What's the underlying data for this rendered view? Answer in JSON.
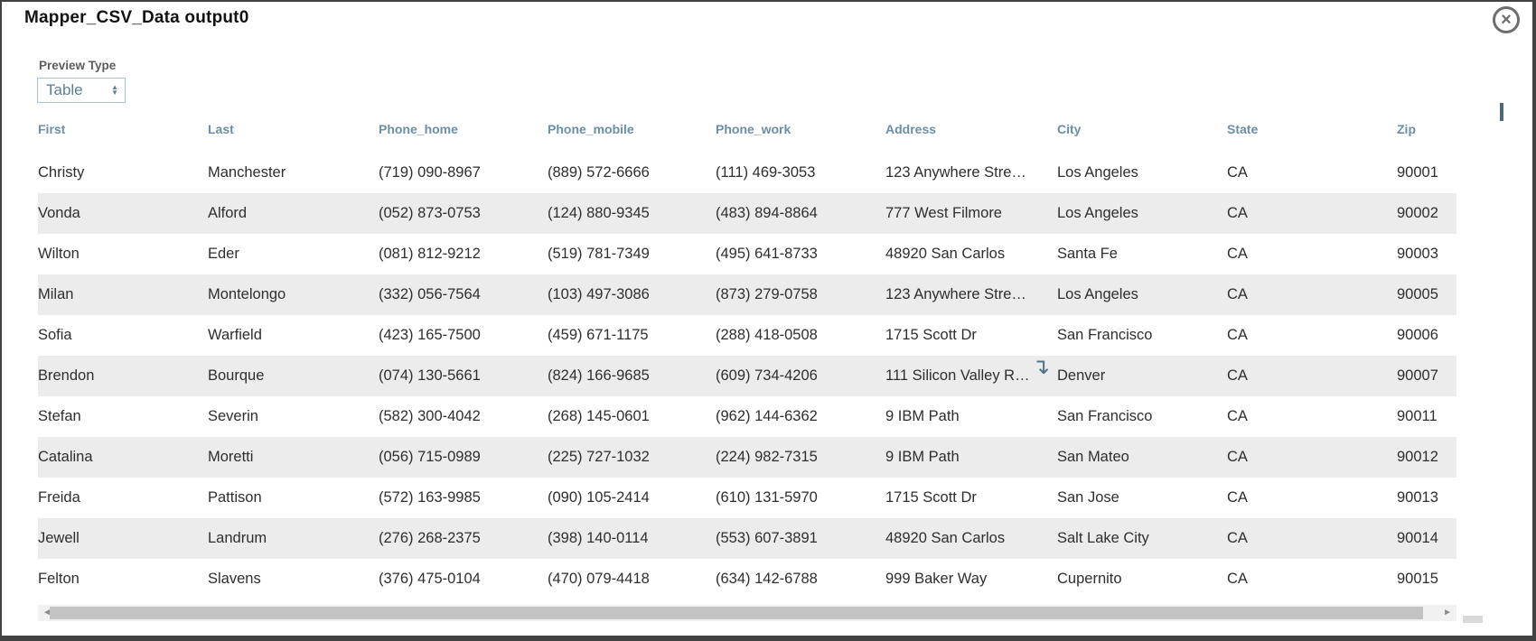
{
  "window": {
    "title": "Mapper_CSV_Data output0"
  },
  "icons": {
    "close": "×",
    "spinner_up": "▲",
    "spinner_down": "▼",
    "scroll_down": "↴",
    "scrollbar_left": "◄",
    "scrollbar_right": "►"
  },
  "colors": {
    "header_text": "#6a8fa5",
    "accent_teal": "#5f7e92",
    "stripe": "#ececec",
    "scrollbar_thumb": "#c3c3c3"
  },
  "preview": {
    "label": "Preview Type",
    "selected": "Table"
  },
  "table": {
    "columns": [
      "First",
      "Last",
      "Phone_home",
      "Phone_mobile",
      "Phone_work",
      "Address",
      "City",
      "State",
      "Zip"
    ],
    "rows": [
      [
        "Christy",
        "Manchester",
        "(719) 090-8967",
        "(889) 572-6666",
        "(111) 469-3053",
        "123 Anywhere Stre…",
        "Los Angeles",
        "CA",
        "90001"
      ],
      [
        "Vonda",
        "Alford",
        "(052) 873-0753",
        "(124) 880-9345",
        "(483) 894-8864",
        "777 West Filmore",
        "Los Angeles",
        "CA",
        "90002"
      ],
      [
        "Wilton",
        "Eder",
        "(081) 812-9212",
        "(519) 781-7349",
        "(495) 641-8733",
        "48920 San Carlos",
        "Santa Fe",
        "CA",
        "90003"
      ],
      [
        "Milan",
        "Montelongo",
        "(332) 056-7564",
        "(103) 497-3086",
        "(873) 279-0758",
        "123 Anywhere Stre…",
        "Los Angeles",
        "CA",
        "90005"
      ],
      [
        "Sofia",
        "Warfield",
        "(423) 165-7500",
        "(459) 671-1175",
        "(288) 418-0508",
        "1715 Scott Dr",
        "San Francisco",
        "CA",
        "90006"
      ],
      [
        "Brendon",
        "Bourque",
        "(074) 130-5661",
        "(824) 166-9685",
        "(609) 734-4206",
        "111 Silicon Valley R…",
        "Denver",
        "CA",
        "90007"
      ],
      [
        "Stefan",
        "Severin",
        "(582) 300-4042",
        "(268) 145-0601",
        "(962) 144-6362",
        "9 IBM Path",
        "San Francisco",
        "CA",
        "90011"
      ],
      [
        "Catalina",
        "Moretti",
        "(056) 715-0989",
        "(225) 727-1032",
        "(224) 982-7315",
        "9 IBM Path",
        "San Mateo",
        "CA",
        "90012"
      ],
      [
        "Freida",
        "Pattison",
        "(572) 163-9985",
        "(090) 105-2414",
        "(610) 131-5970",
        "1715 Scott Dr",
        "San Jose",
        "CA",
        "90013"
      ],
      [
        "Jewell",
        "Landrum",
        "(276) 268-2375",
        "(398) 140-0114",
        "(553) 607-3891",
        "48920 San Carlos",
        "Salt Lake City",
        "CA",
        "90014"
      ],
      [
        "Felton",
        "Slavens",
        "(376) 475-0104",
        "(470) 079-4418",
        "(634) 142-6788",
        "999 Baker Way",
        "Cupernito",
        "CA",
        "90015"
      ]
    ]
  }
}
